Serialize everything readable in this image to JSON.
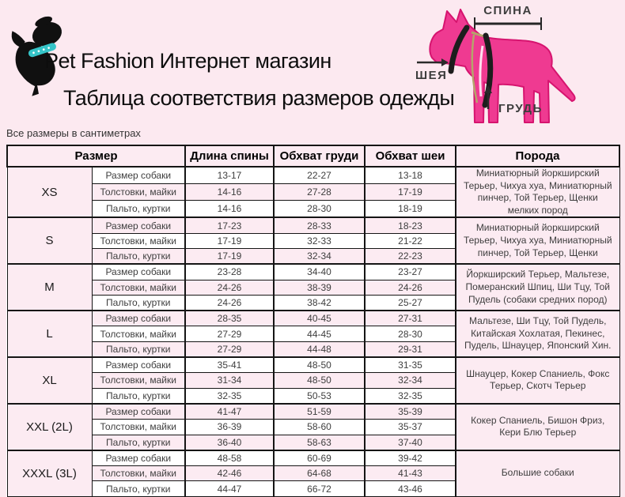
{
  "page": {
    "background": "#fce9f0"
  },
  "brand": {
    "name": "Pet Fashion Интернет магазин",
    "subtitle": "Таблица соответствия размеров одежды"
  },
  "note": "Все размеры в сантиметрах",
  "logo": {
    "dog_color": "#101010",
    "collar_color": "#35c4c8"
  },
  "diagram": {
    "back_label": "СПИНА",
    "neck_label": "ШЕЯ",
    "chest_label": "ГРУДЬ",
    "dog_color": "#ef3a91",
    "outline_color": "#d6146f",
    "band_color": "#1d1d1d",
    "strap_color": "#b5a46b"
  },
  "table": {
    "headers": {
      "size": "Размер",
      "back": "Длина спины",
      "chest": "Обхват груди",
      "neck": "Обхват шеи",
      "breed": "Порода"
    },
    "groups": [
      {
        "size": "XS",
        "breed": "Миниатюрный йоркширский Терьер, Чихуа хуа, Миниатюрный пинчер, Той Терьер, Щенки мелких пород",
        "rows": [
          {
            "label": "Размер собаки",
            "back": "13-17",
            "chest": "22-27",
            "neck": "13-18"
          },
          {
            "label": "Толстовки, майки",
            "back": "14-16",
            "chest": "27-28",
            "neck": "17-19"
          },
          {
            "label": "Пальто, куртки",
            "back": "14-16",
            "chest": "28-30",
            "neck": "18-19"
          }
        ]
      },
      {
        "size": "S",
        "breed": "Миниатюрный йоркширский Терьер, Чихуа хуа, Миниатюрный пинчер, Той Терьер, Щенки",
        "rows": [
          {
            "label": "Размер собаки",
            "back": "17-23",
            "chest": "28-33",
            "neck": "18-23"
          },
          {
            "label": "Толстовки, майки",
            "back": "17-19",
            "chest": "32-33",
            "neck": "21-22"
          },
          {
            "label": "Пальто, куртки",
            "back": "17-19",
            "chest": "32-34",
            "neck": "22-23"
          }
        ]
      },
      {
        "size": "M",
        "breed": "Йоркширский Терьер, Мальтезе, Померанский Шпиц, Ши Тцу, Той Пудель (собаки средних пород)",
        "rows": [
          {
            "label": "Размер собаки",
            "back": "23-28",
            "chest": "34-40",
            "neck": "23-27"
          },
          {
            "label": "Толстовки, майки",
            "back": "24-26",
            "chest": "38-39",
            "neck": "24-26"
          },
          {
            "label": "Пальто, куртки",
            "back": "24-26",
            "chest": "38-42",
            "neck": "25-27"
          }
        ]
      },
      {
        "size": "L",
        "breed": "Мальтезе, Ши Тцу, Той Пудель, Китайская Хохлатая, Пекинес, Пудель, Шнауцер, Японский Хин.",
        "rows": [
          {
            "label": "Размер собаки",
            "back": "28-35",
            "chest": "40-45",
            "neck": "27-31"
          },
          {
            "label": "Толстовки, майки",
            "back": "27-29",
            "chest": "44-45",
            "neck": "28-30"
          },
          {
            "label": "Пальто, куртки",
            "back": "27-29",
            "chest": "44-48",
            "neck": "29-31"
          }
        ]
      },
      {
        "size": "XL",
        "breed": "Шнауцер, Кокер Спаниель, Фокс Терьер, Скотч Терьер",
        "rows": [
          {
            "label": "Размер собаки",
            "back": "35-41",
            "chest": "48-50",
            "neck": "31-35"
          },
          {
            "label": "Толстовки, майки",
            "back": "31-34",
            "chest": "48-50",
            "neck": "32-34"
          },
          {
            "label": "Пальто, куртки",
            "back": "32-35",
            "chest": "50-53",
            "neck": "32-35"
          }
        ]
      },
      {
        "size": "XXL (2L)",
        "breed": "Кокер Спаниель, Бишон Фриз, Кери Блю Терьер",
        "rows": [
          {
            "label": "Размер собаки",
            "back": "41-47",
            "chest": "51-59",
            "neck": "35-39"
          },
          {
            "label": "Толстовки, майки",
            "back": "36-39",
            "chest": "58-60",
            "neck": "35-37"
          },
          {
            "label": "Пальто, куртки",
            "back": "36-40",
            "chest": "58-63",
            "neck": "37-40"
          }
        ]
      },
      {
        "size": "XXXL (3L)",
        "breed": "Большие собаки",
        "rows": [
          {
            "label": "Размер собаки",
            "back": "48-58",
            "chest": "60-69",
            "neck": "39-42"
          },
          {
            "label": "Толстовки, майки",
            "back": "42-46",
            "chest": "64-68",
            "neck": "41-43"
          },
          {
            "label": "Пальто, куртки",
            "back": "44-47",
            "chest": "66-72",
            "neck": "43-46"
          }
        ]
      }
    ]
  }
}
